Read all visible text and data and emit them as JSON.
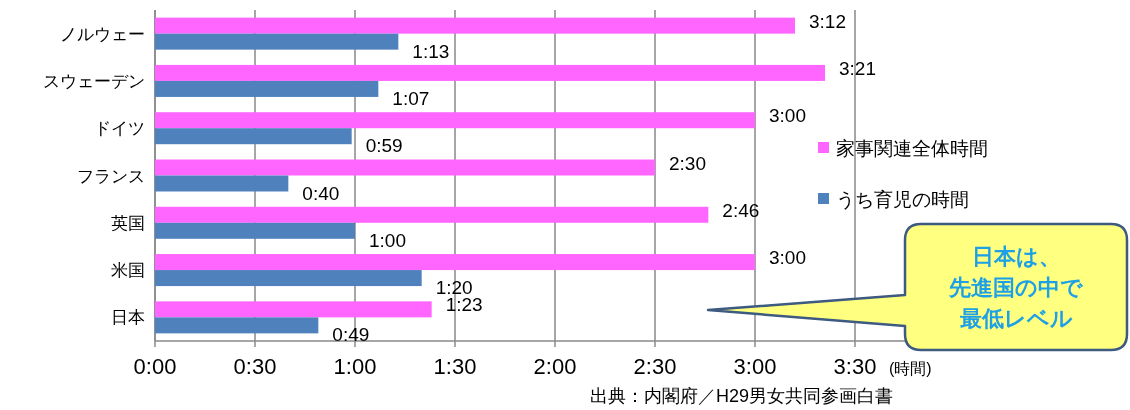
{
  "chart_data": {
    "type": "bar",
    "orientation": "horizontal",
    "categories": [
      "ノルウェー",
      "スウェーデン",
      "ドイツ",
      "フランス",
      "英国",
      "米国",
      "日本"
    ],
    "series": [
      {
        "name": "家事関連全体時間",
        "color": "#ff66ff",
        "values": [
          192,
          201,
          180,
          150,
          166,
          180,
          83
        ],
        "value_labels": [
          "3:12",
          "3:21",
          "3:00",
          "2:30",
          "2:46",
          "3:00",
          "1:23"
        ]
      },
      {
        "name": "うち育児の時間",
        "color": "#4f81bd",
        "values": [
          73,
          67,
          59,
          40,
          60,
          80,
          49
        ],
        "value_labels": [
          "1:13",
          "1:07",
          "0:59",
          "0:40",
          "1:00",
          "1:20",
          "0:49"
        ]
      }
    ],
    "xlim": [
      0,
      240
    ],
    "xticks": [
      {
        "value": 0,
        "label": "0:00"
      },
      {
        "value": 30,
        "label": "0:30"
      },
      {
        "value": 60,
        "label": "1:00"
      },
      {
        "value": 90,
        "label": "1:30"
      },
      {
        "value": 120,
        "label": "2:00"
      },
      {
        "value": 150,
        "label": "2:30"
      },
      {
        "value": 180,
        "label": "3:00"
      },
      {
        "value": 210,
        "label": "3:30"
      }
    ],
    "xlabel": "(時間)",
    "grid": "x",
    "legend": "right",
    "annotations": [
      "日本は、",
      "先進国の中で",
      "最低レベル",
      "出典：内閣府／H29男女共同参画白書"
    ]
  }
}
